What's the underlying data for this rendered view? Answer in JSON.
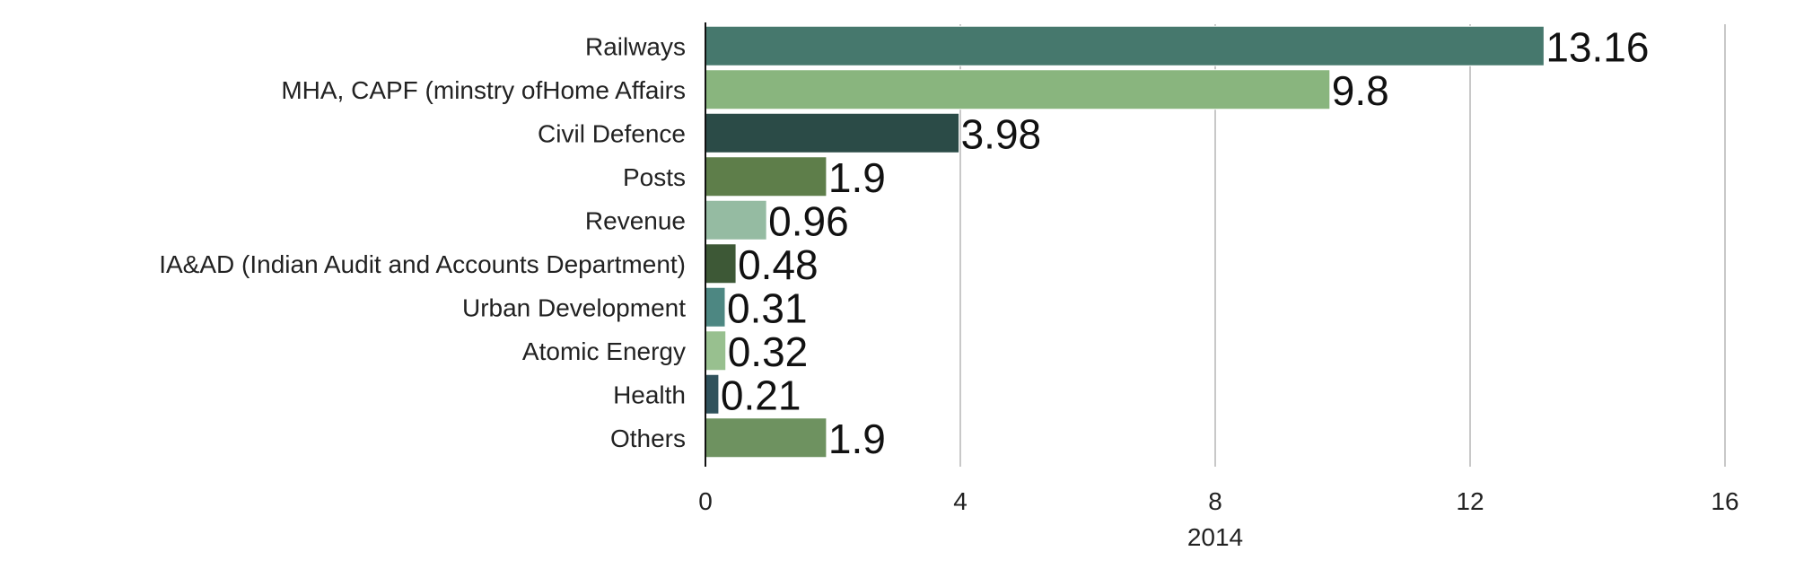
{
  "chart_data": {
    "type": "bar",
    "orientation": "horizontal",
    "categories": [
      "Railways",
      "MHA, CAPF (minstry ofHome Affairs",
      "Civil Defence",
      "Posts",
      "Revenue",
      "IA&AD (Indian Audit and Accounts Department)",
      "Urban Development",
      "Atomic Energy",
      "Health",
      "Others"
    ],
    "values": [
      13.16,
      9.8,
      3.98,
      1.9,
      0.96,
      0.48,
      0.31,
      0.32,
      0.21,
      1.9
    ],
    "data_labels": [
      "13.16",
      "9.8",
      "3.98",
      "1.9",
      "0.96",
      "0.48",
      "0.31",
      "0.32",
      "0.21",
      "1.9"
    ],
    "bar_colors": [
      "#46786d",
      "#89b57e",
      "#2b4b47",
      "#5e7e4a",
      "#95bba2",
      "#3d5836",
      "#4d8782",
      "#98c08f",
      "#30525c",
      "#6e9260"
    ],
    "xlim": [
      0,
      16
    ],
    "xticks": [
      0,
      4,
      8,
      12,
      16
    ],
    "xlabel": "2014",
    "grid": "vertical"
  }
}
